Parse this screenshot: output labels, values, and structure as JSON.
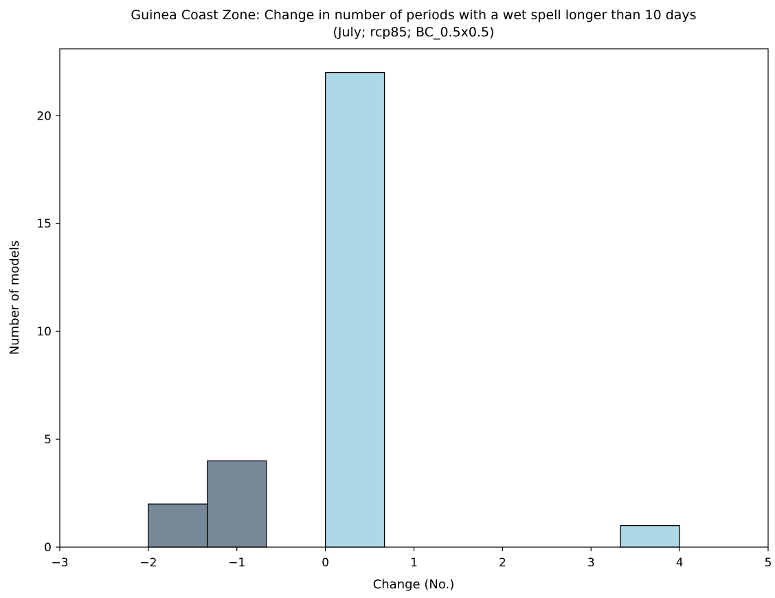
{
  "chart_data": {
    "type": "bar",
    "title": "Guinea Coast Zone: Change in number of periods with a wet spell longer than 10 days",
    "subtitle": "(July; rcp85; BC_0.5x0.5)",
    "xlabel": "Change (No.)",
    "ylabel": "Number of models",
    "xlim": [
      -3,
      5
    ],
    "ylim": [
      0,
      23.1
    ],
    "x_ticks": [
      -3,
      -2,
      -1,
      0,
      1,
      2,
      3,
      4,
      5
    ],
    "x_tick_labels": [
      "−3",
      "−2",
      "−1",
      "0",
      "1",
      "2",
      "3",
      "4",
      "5"
    ],
    "y_ticks": [
      0,
      5,
      10,
      15,
      20
    ],
    "y_tick_labels": [
      "0",
      "5",
      "10",
      "15",
      "20"
    ],
    "grid": false,
    "bins": [
      {
        "x0": -2.0,
        "x1": -1.333,
        "count": 2,
        "color": "#778899"
      },
      {
        "x0": -1.333,
        "x1": -0.667,
        "count": 4,
        "color": "#778899"
      },
      {
        "x0": -0.667,
        "x1": 0.0,
        "count": 0,
        "color": "#778899"
      },
      {
        "x0": 0.0,
        "x1": 0.667,
        "count": 22,
        "color": "#add8e6"
      },
      {
        "x0": 0.667,
        "x1": 1.333,
        "count": 0,
        "color": "#add8e6"
      },
      {
        "x0": 1.333,
        "x1": 2.0,
        "count": 0,
        "color": "#add8e6"
      },
      {
        "x0": 2.0,
        "x1": 2.667,
        "count": 0,
        "color": "#add8e6"
      },
      {
        "x0": 2.667,
        "x1": 3.333,
        "count": 0,
        "color": "#add8e6"
      },
      {
        "x0": 3.333,
        "x1": 4.0,
        "count": 1,
        "color": "#add8e6"
      }
    ],
    "colors": {
      "negative": "#778899",
      "positive": "#add8e6",
      "edge": "#000000"
    }
  }
}
